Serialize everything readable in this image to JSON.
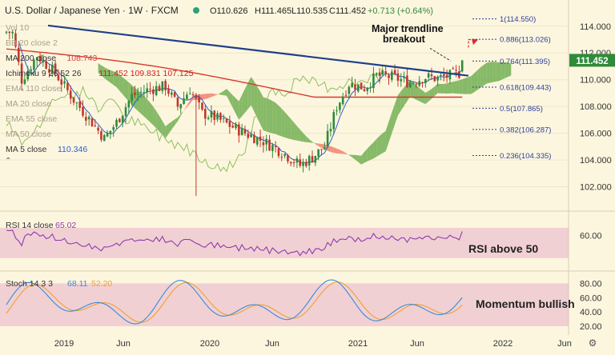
{
  "header": {
    "symbol": "U.S. Dollar / Japanese Yen",
    "interval": "1W",
    "source": "FXCM",
    "ohlc_o": "O110.626",
    "ohlc_h": "H111.465",
    "ohlc_l": "L110.535",
    "ohlc_c": "C111.452",
    "change": "+0.713 (+0.64%)"
  },
  "indicators": [
    {
      "label": "Vol 10",
      "value": "",
      "color": "#b0a890"
    },
    {
      "label": "BB 20 close 2",
      "value": "",
      "color": "#b0a890"
    },
    {
      "label": "MA 200 close",
      "value": "108.743",
      "color": "#e04040"
    },
    {
      "label": "Ichimoku 9 26 52 26",
      "value": "111.452   109.831   107.125",
      "color": "#d02020"
    },
    {
      "label": "EMA 110 close",
      "value": "",
      "color": "#b0a890"
    },
    {
      "label": "MA 20 close",
      "value": "",
      "color": "#b0a890"
    },
    {
      "label": "EMA 55 close",
      "value": "",
      "color": "#b0a890"
    },
    {
      "label": "MA 50 close",
      "value": "",
      "color": "#b0a890"
    },
    {
      "label": "MA 5 close",
      "value": "110.346",
      "color": "#2b5fd0"
    }
  ],
  "annotations": {
    "breakout": [
      "Major trendline",
      "breakout"
    ],
    "rsi_note": "RSI above 50",
    "stoch_note": "Momentum bullish"
  },
  "price_badge": "111.452",
  "colors": {
    "background": "#fdf6df",
    "candle_up": "#2e8b3a",
    "candle_down": "#c0392b",
    "trendline": "#1f3f8a",
    "ma200": "#d63a2e",
    "cloud_bull": "#5fa640",
    "cloud_bear": "#f07060",
    "lagging": "#8fbf60",
    "rsi_line": "#8e3ab0",
    "stoch_k": "#3a8ad8",
    "stoch_d": "#f0a030",
    "pane_band": "#e8b0c8",
    "badge": "#2e8b3a",
    "fib": "#2a3f9a"
  },
  "chart_data": [
    {
      "id": "price",
      "type": "candlestick",
      "y_ticks": [
        102,
        104,
        106,
        108,
        110,
        112,
        114
      ],
      "y_tick_labels": [
        "102.000",
        "104.000",
        "106.000",
        "108.000",
        "110.000",
        "112.000",
        "114.000"
      ],
      "ylim": [
        100.3,
        115.6
      ],
      "x_tick_labels": [
        "2019",
        "Jun",
        "2020",
        "Jun",
        "2021",
        "Jun",
        "2022",
        "Jun"
      ],
      "fib_levels": [
        {
          "ratio": "1",
          "value": 114.55
        },
        {
          "ratio": "0.886",
          "value": 113.026
        },
        {
          "ratio": "0.764",
          "value": 111.395
        },
        {
          "ratio": "0.618",
          "value": 109.443
        },
        {
          "ratio": "0.5",
          "value": 107.865
        },
        {
          "ratio": "0.382",
          "value": 106.287
        },
        {
          "ratio": "0.236",
          "value": 104.335
        }
      ],
      "last_close": 111.452
    },
    {
      "id": "rsi",
      "type": "line",
      "label": "RSI 14 close",
      "value_label": "65.02",
      "y_ticks": [
        60
      ],
      "y_tick_labels": [
        "60.00"
      ],
      "band": [
        30,
        70
      ],
      "ylim": [
        15,
        90
      ],
      "last": 65.02
    },
    {
      "id": "stoch",
      "type": "line",
      "label": "Stoch 14 3 3",
      "k_label": "68.11",
      "d_label": "52.20",
      "y_ticks": [
        20,
        40,
        60,
        80
      ],
      "y_tick_labels": [
        "20.00",
        "40.00",
        "60.00",
        "80.00"
      ],
      "band": [
        20,
        80
      ],
      "ylim": [
        10,
        95
      ]
    }
  ]
}
